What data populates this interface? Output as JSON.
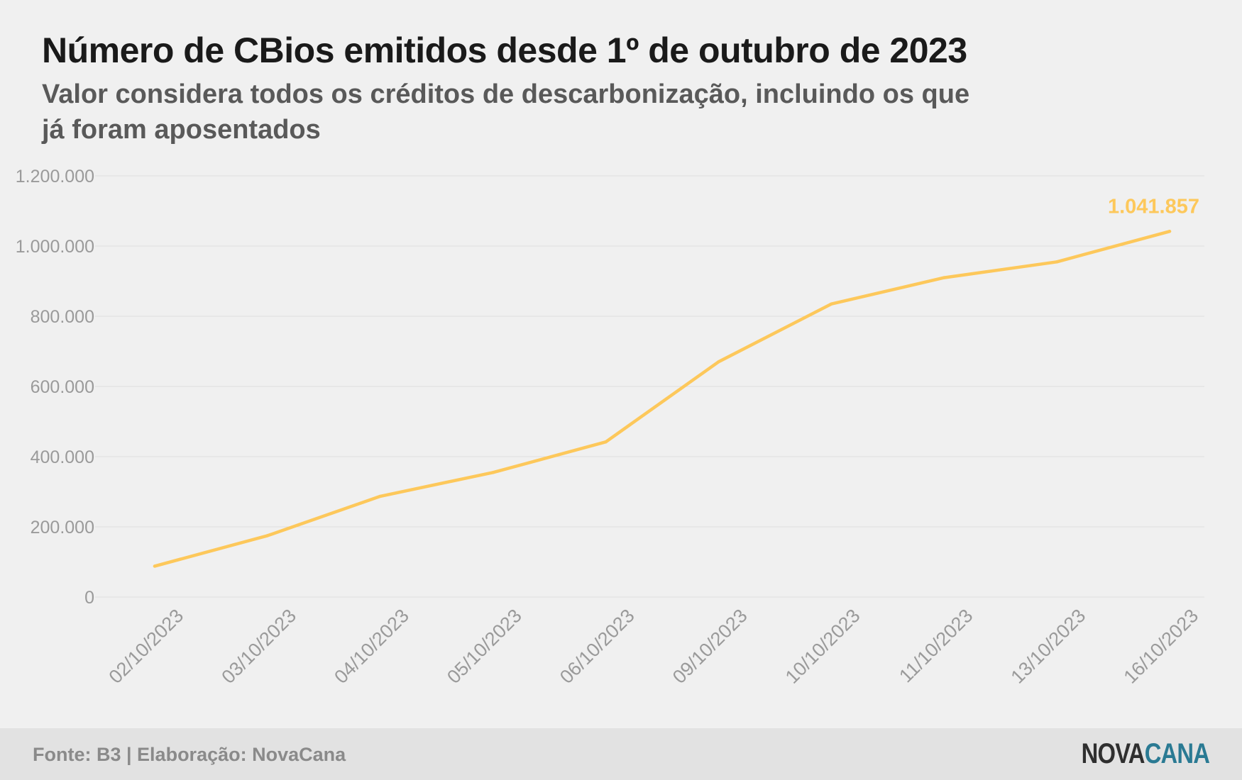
{
  "header": {
    "title": "Número de CBios emitidos desde 1º de outubro de 2023",
    "subtitle": "Valor considera todos os créditos de descarbonização, incluindo os que já foram aposentados"
  },
  "footer": {
    "source": "Fonte: B3 | Elaboração: NovaCana",
    "logo_part1": "NOVA",
    "logo_part2": "CANA"
  },
  "colors": {
    "line": "#fdc85b",
    "grid": "#dedede",
    "tick": "#9a9a9a",
    "logo_nova": "#2f2f2f",
    "logo_cana": "#2a7a93"
  },
  "chart_data": {
    "type": "line",
    "title": "Número de CBios emitidos desde 1º de outubro de 2023",
    "x": [
      "02/10/2023",
      "03/10/2023",
      "04/10/2023",
      "05/10/2023",
      "06/10/2023",
      "09/10/2023",
      "10/10/2023",
      "11/10/2023",
      "13/10/2023",
      "16/10/2023"
    ],
    "series": [
      {
        "values": [
          88000,
          175000,
          287000,
          355000,
          442000,
          670000,
          835000,
          910000,
          955000,
          1041857
        ]
      }
    ],
    "ylim": [
      0,
      1200000
    ],
    "yticks": [
      0,
      200000,
      400000,
      600000,
      800000,
      1000000,
      1200000
    ],
    "ytick_labels": [
      "0",
      "200.000",
      "400.000",
      "600.000",
      "800.000",
      "1.000.000",
      "1.200.000"
    ],
    "annotation": {
      "index": 9,
      "text": "1.041.857"
    },
    "grid": true,
    "legend": "none"
  }
}
